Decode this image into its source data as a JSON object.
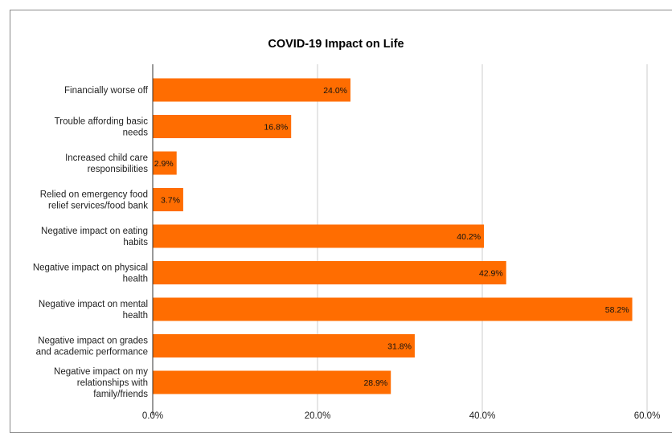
{
  "chart_data": {
    "type": "bar",
    "orientation": "horizontal",
    "title": "COVID-19 Impact on Life",
    "categories": [
      [
        "Financially worse off"
      ],
      [
        "Trouble affording basic",
        "needs"
      ],
      [
        "Increased child care",
        "responsibilities"
      ],
      [
        "Relied on emergency food",
        "relief services/food bank"
      ],
      [
        "Negative impact on eating",
        "habits"
      ],
      [
        "Negative impact on physical",
        "health"
      ],
      [
        "Negative impact on mental",
        "health"
      ],
      [
        "Negative impact on grades",
        "and academic performance"
      ],
      [
        "Negative impact on my",
        "relationships with",
        "family/friends"
      ]
    ],
    "values": [
      24.0,
      16.8,
      2.9,
      3.7,
      40.2,
      42.9,
      58.2,
      31.8,
      28.9
    ],
    "value_labels": [
      "24.0%",
      "16.8%",
      "2.9%",
      "3.7%",
      "40.2%",
      "42.9%",
      "58.2%",
      "31.8%",
      "28.9%"
    ],
    "xlim": [
      0,
      60
    ],
    "xticks": [
      0,
      20,
      40,
      60
    ],
    "xtick_labels": [
      "0.0%",
      "20.0%",
      "40.0%",
      "60.0%"
    ],
    "bar_color": "#ff6d01",
    "grid": true,
    "legend": "none"
  }
}
